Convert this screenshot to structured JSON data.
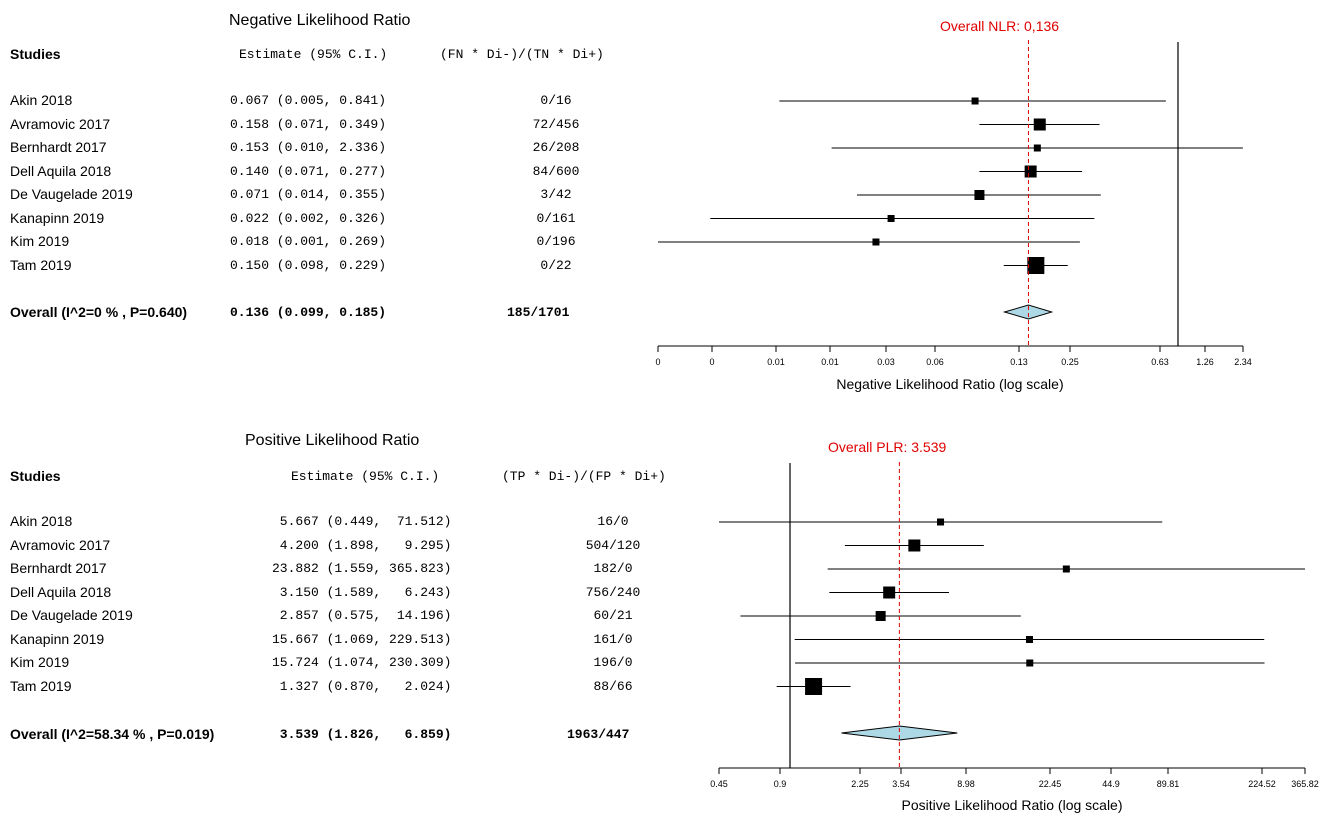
{
  "chart_data": [
    {
      "type": "forest",
      "title": "Negative Likelihood Ratio",
      "header": {
        "studies": "Studies",
        "estimate": "Estimate (95% C.I.)",
        "counts": "(FN * Di-)/(TN * Di+)"
      },
      "rows": [
        {
          "study": "Akin 2018",
          "est_text": "0.067 (0.005, 0.841)",
          "counts": "0/16",
          "est": 0.067,
          "lo": 0.005,
          "hi": 0.841,
          "weight": 1
        },
        {
          "study": "Avramovic 2017",
          "est_text": "0.158 (0.071, 0.349)",
          "counts": "72/456",
          "est": 0.158,
          "lo": 0.071,
          "hi": 0.349,
          "weight": 3
        },
        {
          "study": "Bernhardt 2017",
          "est_text": "0.153 (0.010, 2.336)",
          "counts": "26/208",
          "est": 0.153,
          "lo": 0.01,
          "hi": 2.336,
          "weight": 1
        },
        {
          "study": "Dell Aquila 2018",
          "est_text": "0.140 (0.071, 0.277)",
          "counts": "84/600",
          "est": 0.14,
          "lo": 0.071,
          "hi": 0.277,
          "weight": 3
        },
        {
          "study": "De Vaugelade 2019",
          "est_text": "0.071 (0.014, 0.355)",
          "counts": "3/42",
          "est": 0.071,
          "lo": 0.014,
          "hi": 0.355,
          "weight": 2
        },
        {
          "study": "Kanapinn 2019",
          "est_text": "0.022 (0.002, 0.326)",
          "counts": "0/161",
          "est": 0.022,
          "lo": 0.002,
          "hi": 0.326,
          "weight": 1
        },
        {
          "study": "Kim 2019",
          "est_text": "0.018 (0.001, 0.269)",
          "counts": "0/196",
          "est": 0.018,
          "lo": 0.001,
          "hi": 0.269,
          "weight": 1
        },
        {
          "study": "Tam 2019",
          "est_text": "0.150 (0.098, 0.229)",
          "counts": "0/22",
          "est": 0.15,
          "lo": 0.098,
          "hi": 0.229,
          "weight": 4
        }
      ],
      "overall": {
        "label": "Overall (I^2=0 % , P=0.640)",
        "est_text": "0.136 (0.099, 0.185)",
        "counts": "185/1701",
        "est": 0.136,
        "lo": 0.099,
        "hi": 0.185
      },
      "overall_line_label": "Overall NLR: 0,136",
      "xlabel": "Negative Likelihood Ratio (log scale)",
      "tick_labels": [
        "0",
        "0",
        "0.01",
        "0.01",
        "0.03",
        "0.06",
        "0.13",
        "0.25",
        "0.63",
        "1.26",
        "2.34"
      ],
      "xrange": [
        0.001,
        2.34
      ],
      "x_scale": "log"
    },
    {
      "type": "forest",
      "title": "Positive Likelihood Ratio",
      "header": {
        "studies": "Studies",
        "estimate": "Estimate (95% C.I.)",
        "counts": "(TP * Di-)/(FP * Di+)"
      },
      "rows": [
        {
          "study": "Akin 2018",
          "est_text": " 5.667 (0.449,  71.512)",
          "counts": "16/0",
          "est": 5.667,
          "lo": 0.449,
          "hi": 71.512,
          "weight": 1
        },
        {
          "study": "Avramovic 2017",
          "est_text": " 4.200 (1.898,   9.295)",
          "counts": "504/120",
          "est": 4.2,
          "lo": 1.898,
          "hi": 9.295,
          "weight": 3
        },
        {
          "study": "Bernhardt 2017",
          "est_text": "23.882 (1.559, 365.823)",
          "counts": "182/0",
          "est": 23.882,
          "lo": 1.559,
          "hi": 365.823,
          "weight": 1
        },
        {
          "study": "Dell Aquila 2018",
          "est_text": " 3.150 (1.589,   6.243)",
          "counts": "756/240",
          "est": 3.15,
          "lo": 1.589,
          "hi": 6.243,
          "weight": 3
        },
        {
          "study": "De Vaugelade 2019",
          "est_text": " 2.857 (0.575,  14.196)",
          "counts": "60/21",
          "est": 2.857,
          "lo": 0.575,
          "hi": 14.196,
          "weight": 2
        },
        {
          "study": "Kanapinn 2019",
          "est_text": "15.667 (1.069, 229.513)",
          "counts": "161/0",
          "est": 15.667,
          "lo": 1.069,
          "hi": 229.513,
          "weight": 1
        },
        {
          "study": "Kim 2019",
          "est_text": "15.724 (1.074, 230.309)",
          "counts": "196/0",
          "est": 15.724,
          "lo": 1.074,
          "hi": 230.309,
          "weight": 1
        },
        {
          "study": "Tam 2019",
          "est_text": " 1.327 (0.870,   2.024)",
          "counts": "88/66",
          "est": 1.327,
          "lo": 0.87,
          "hi": 2.024,
          "weight": 4
        }
      ],
      "overall": {
        "label": "Overall (I^2=58.34 % , P=0.019)",
        "est_text": " 3.539 (1.826,   6.859)",
        "counts": "1963/447",
        "est": 3.539,
        "lo": 1.826,
        "hi": 6.859
      },
      "overall_line_label": "Overall PLR: 3.539",
      "xlabel": "Positive Likelihood Ratio (log scale)",
      "tick_labels": [
        "0.45",
        "0.9",
        "2.25",
        "3.54",
        "8.98",
        "22.45",
        "44.9",
        "89.81",
        "224.52",
        "365.82"
      ],
      "tick_values": [
        0.45,
        0.9,
        2.25,
        3.54,
        8.98,
        22.45,
        44.9,
        89.81,
        224.52,
        365.82
      ],
      "xrange": [
        0.45,
        365.82
      ],
      "x_scale": "log"
    }
  ],
  "colors": {
    "overall_line": "#e00000",
    "diamond_fill": "#add8e6",
    "marker": "#000000"
  }
}
